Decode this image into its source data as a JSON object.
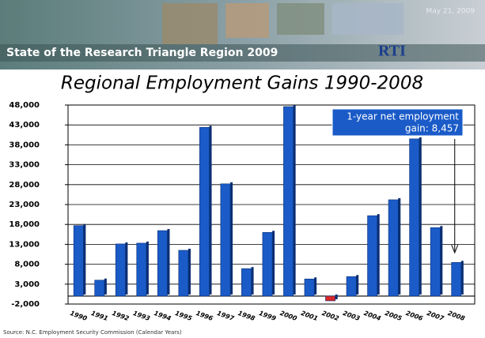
{
  "header": {
    "title": "State of the Research Triangle Region 2009",
    "date": "May 21, 2009",
    "logo": "RTI"
  },
  "chart_data": {
    "type": "bar",
    "title": "Regional Employment Gains 1990-2008",
    "categories": [
      "1990",
      "1991",
      "1992",
      "1993",
      "1994",
      "1995",
      "1996",
      "1997",
      "1998",
      "1999",
      "2000",
      "2001",
      "2002",
      "2003",
      "2004",
      "2005",
      "2006",
      "2007",
      "2008"
    ],
    "values": [
      17700,
      4000,
      13100,
      13300,
      16450,
      11500,
      42400,
      28200,
      6900,
      16000,
      47600,
      4300,
      -1200,
      4900,
      20200,
      24200,
      39500,
      17200,
      8457
    ],
    "color": "#1a5bc8",
    "negative_color": "#d9262b",
    "ylim": [
      -2000,
      48000
    ],
    "yticks": [
      {
        "value": -2000,
        "label": "-2,000"
      },
      {
        "value": 3000,
        "label": "3,000"
      },
      {
        "value": 8000,
        "label": "8,000"
      },
      {
        "value": 13000,
        "label": "13,000"
      },
      {
        "value": 18000,
        "label": "18,000"
      },
      {
        "value": 23000,
        "label": "23,000"
      },
      {
        "value": 28000,
        "label": "28,000"
      },
      {
        "value": 33000,
        "label": "33,000"
      },
      {
        "value": 38000,
        "label": "38,000"
      },
      {
        "value": 43000,
        "label": "43,000"
      },
      {
        "value": 48000,
        "label": "48,000"
      }
    ],
    "grid": true,
    "annotation": {
      "line1": "1-year net employment",
      "line2": "gain: 8,457"
    },
    "source": "Source: N.C. Employment Security Commission (Calendar Years)"
  }
}
